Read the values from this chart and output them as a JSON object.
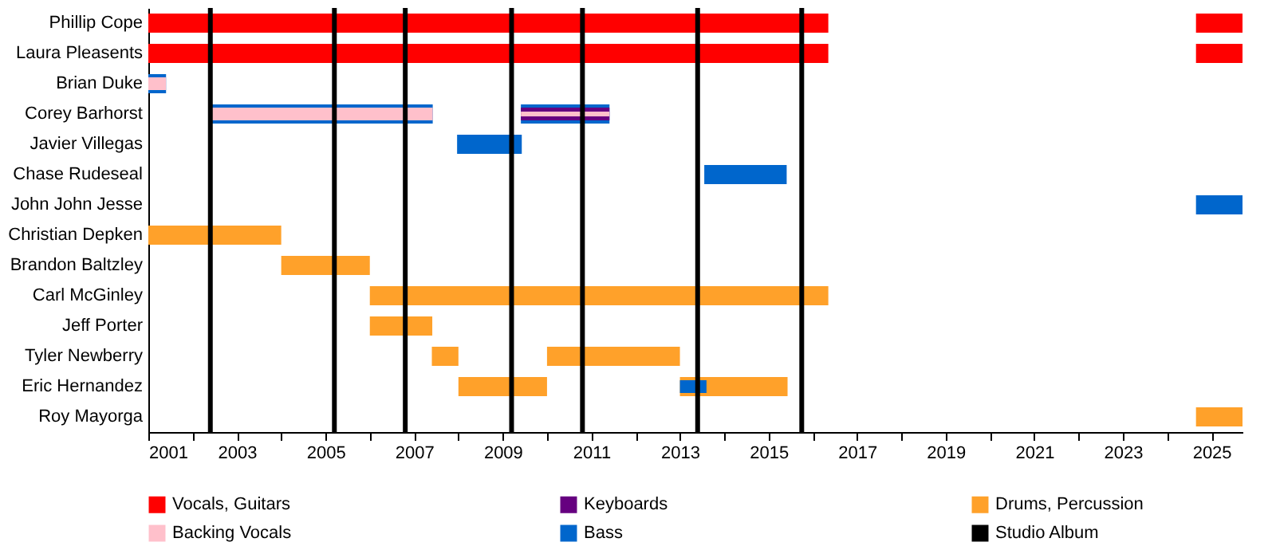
{
  "chart_data": {
    "type": "bar",
    "orientation": "horizontal",
    "legend": "bottom",
    "categories": [
      "Phillip Cope",
      "Laura Pleasents",
      "Brian Duke",
      "Corey Barhorst",
      "Javier Villegas",
      "Chase Rudeseal",
      "John John Jesse",
      "Christian Depken",
      "Brandon Baltzley",
      "Carl McGinley",
      "Jeff Porter",
      "Tyler Newberry",
      "Eric Hernandez",
      "Roy Mayorga"
    ],
    "xlim": [
      2001,
      2025.7
    ],
    "xticks": [
      2001,
      {
        "value": 2002,
        "label": null
      },
      2003,
      {
        "value": 2004,
        "label": null
      },
      2005,
      {
        "value": 2006,
        "label": null
      },
      2007,
      {
        "value": 2008,
        "label": null
      },
      2009,
      {
        "value": 2010,
        "label": null
      },
      2011,
      {
        "value": 2012,
        "label": null
      },
      2013,
      {
        "value": 2014,
        "label": null
      },
      2015,
      {
        "value": 2016,
        "label": null
      },
      2017,
      {
        "value": 2018,
        "label": null
      },
      2019,
      {
        "value": 2020,
        "label": null
      },
      2021,
      {
        "value": 2022,
        "label": null
      },
      2023,
      {
        "value": 2024,
        "label": null
      },
      2025
    ],
    "series": [
      {
        "name": "Vocals, Guitars",
        "color": "#ff0000",
        "base": [
          2001,
          2001,
          null,
          null,
          null,
          null,
          null,
          null,
          null,
          null,
          null,
          null,
          null,
          null
        ],
        "values": [
          15.35,
          15.35,
          null,
          null,
          null,
          null,
          null,
          null,
          null,
          null,
          null,
          null,
          null,
          null
        ]
      },
      {
        "color": "#ff0000",
        "base": [
          2024.65,
          2024.65,
          null,
          null,
          null,
          null,
          null,
          null,
          null,
          null,
          null,
          null,
          null,
          null
        ],
        "values": [
          1.05,
          1.05,
          null,
          null,
          null,
          null,
          null,
          null,
          null,
          null,
          null,
          null,
          null,
          null
        ]
      },
      {
        "name": "Backing Vocals",
        "color": "#ffc0cb",
        "base": [
          null,
          null,
          2001,
          2002.42,
          null,
          null,
          null,
          null,
          null,
          null,
          null,
          null,
          null,
          null
        ],
        "values": [
          null,
          null,
          0.4,
          5,
          null,
          null,
          null,
          null,
          null,
          null,
          null,
          null,
          null,
          null
        ]
      },
      {
        "color": "#ffc0cb",
        "base": [
          null,
          null,
          null,
          2009.41,
          null,
          null,
          null,
          null,
          null,
          null,
          null,
          null,
          null,
          null
        ],
        "values": [
          null,
          null,
          null,
          2,
          null,
          null,
          null,
          null,
          null,
          null,
          null,
          null,
          null,
          null
        ]
      },
      {
        "name": "Keyboards",
        "color": "#660080",
        "base": [
          null,
          null,
          null,
          2009.41,
          null,
          null,
          null,
          null,
          null,
          null,
          null,
          null,
          null,
          null
        ],
        "values": [
          null,
          null,
          null,
          2,
          null,
          null,
          null,
          null,
          null,
          null,
          null,
          null,
          null,
          null
        ]
      },
      {
        "name": "Bass",
        "color": "#0066cc",
        "base": [
          null,
          null,
          2001,
          2002.42,
          2007.97,
          2013.55,
          2024.65,
          null,
          null,
          null,
          null,
          null,
          2013,
          null
        ],
        "values": [
          null,
          null,
          0.4,
          5,
          1.46,
          1.86,
          1.05,
          null,
          null,
          null,
          null,
          null,
          0.6,
          null
        ]
      },
      {
        "color": "#0066cc",
        "base": [
          null,
          null,
          null,
          2009.41,
          null,
          null,
          null,
          null,
          null,
          null,
          null,
          null,
          null,
          null
        ],
        "values": [
          null,
          null,
          null,
          2,
          null,
          null,
          null,
          null,
          null,
          null,
          null,
          null,
          null,
          null
        ]
      },
      {
        "name": "Drums, Percussion",
        "color": "#ffa12a",
        "base": [
          null,
          null,
          null,
          null,
          null,
          null,
          null,
          2001,
          2004,
          2006,
          2006,
          2007.4,
          2008,
          2024.65
        ],
        "values": [
          null,
          null,
          null,
          null,
          null,
          null,
          null,
          3,
          2,
          10.35,
          1.41,
          0.6,
          2,
          1.05
        ]
      },
      {
        "color": "#ffa12a",
        "base": [
          null,
          null,
          null,
          null,
          null,
          null,
          null,
          null,
          null,
          null,
          null,
          2010,
          2013,
          null
        ],
        "values": [
          null,
          null,
          null,
          null,
          null,
          null,
          null,
          null,
          null,
          null,
          null,
          3,
          2.43,
          null
        ]
      }
    ],
    "ref_lines": [
      {
        "axis": "x",
        "value": 2002.4,
        "color": "#000000",
        "label": "Studio Album"
      },
      {
        "axis": "x",
        "value": 2005.2,
        "color": "#000000"
      },
      {
        "axis": "x",
        "value": 2006.8,
        "color": "#000000"
      },
      {
        "axis": "x",
        "value": 2009.2,
        "color": "#000000"
      },
      {
        "axis": "x",
        "value": 2010.8,
        "color": "#000000"
      },
      {
        "axis": "x",
        "value": 2013.4,
        "color": "#000000"
      },
      {
        "axis": "x",
        "value": 2015.75,
        "color": "#000000"
      }
    ]
  }
}
